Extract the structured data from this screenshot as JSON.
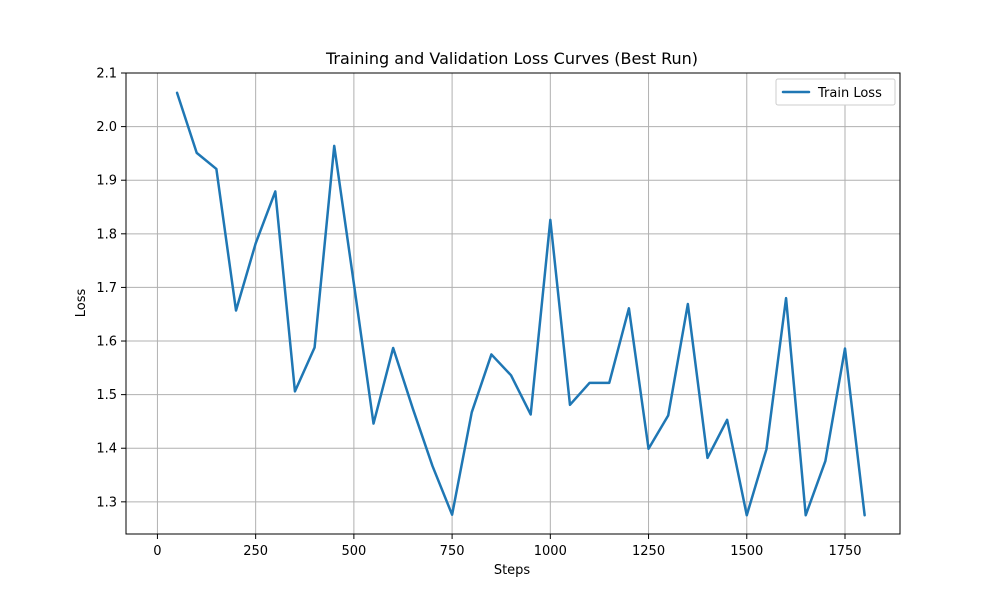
{
  "chart_data": {
    "type": "line",
    "title": "Training and Validation Loss Curves (Best Run)",
    "xlabel": "Steps",
    "ylabel": "Loss",
    "xlim": [
      -80,
      1890
    ],
    "ylim": [
      1.24,
      2.1
    ],
    "xticks": [
      0,
      250,
      500,
      750,
      1000,
      1250,
      1500,
      1750
    ],
    "xtick_labels": [
      "0",
      "250",
      "500",
      "750",
      "1000",
      "1250",
      "1500",
      "1750"
    ],
    "yticks": [
      1.3,
      1.4,
      1.5,
      1.6,
      1.7,
      1.8,
      1.9,
      2.0,
      2.1
    ],
    "ytick_labels": [
      "1.3",
      "1.4",
      "1.5",
      "1.6",
      "1.7",
      "1.8",
      "1.9",
      "2.0",
      "2.1"
    ],
    "grid": true,
    "legend_position": "top-right",
    "series": [
      {
        "name": "Train Loss",
        "color": "#1f77b4",
        "x": [
          50,
          100,
          150,
          200,
          250,
          300,
          350,
          400,
          450,
          500,
          550,
          600,
          650,
          700,
          750,
          800,
          850,
          900,
          950,
          1000,
          1050,
          1100,
          1150,
          1200,
          1250,
          1300,
          1350,
          1400,
          1450,
          1500,
          1550,
          1600,
          1650,
          1700,
          1750,
          1800
        ],
        "y": [
          2.063,
          1.951,
          1.921,
          1.657,
          1.782,
          1.879,
          1.506,
          1.588,
          1.964,
          1.707,
          1.446,
          1.587,
          1.474,
          1.367,
          1.276,
          1.467,
          1.575,
          1.536,
          1.463,
          1.826,
          1.481,
          1.522,
          1.522,
          1.661,
          1.399,
          1.461,
          1.669,
          1.382,
          1.453,
          1.275,
          1.398,
          1.68,
          1.275,
          1.376,
          1.586,
          1.275
        ]
      }
    ]
  }
}
